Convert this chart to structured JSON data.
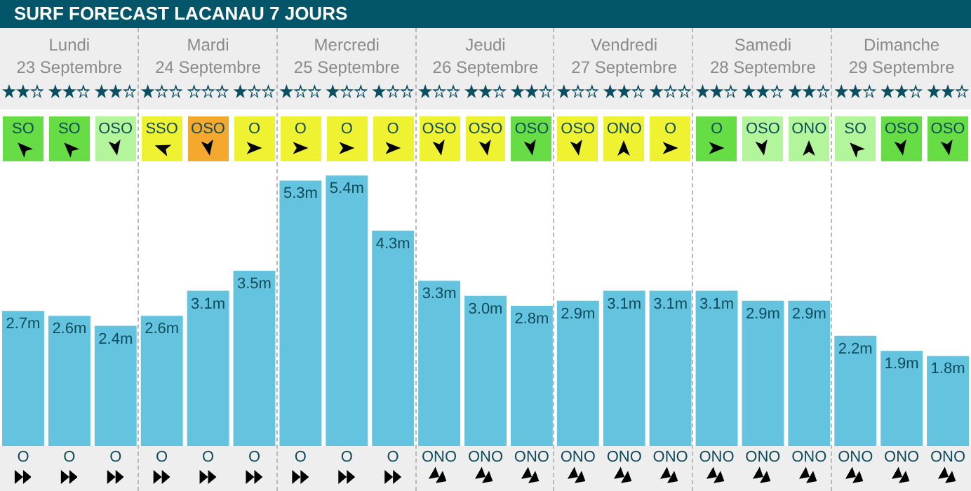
{
  "chart_data": {
    "type": "bar",
    "title": "SURF FORECAST LACANAU 7 JOURS",
    "categories": [
      "Lundi\n23 Septembre",
      "Mardi\n24 Septembre",
      "Mercredi\n25 Septembre",
      "Jeudi\n26 Septembre",
      "Vendredi\n27 Septembre",
      "Samedi\n28 Septembre",
      "Dimanche\n29 Septembre"
    ],
    "series": [
      {
        "color": "#64c4e0",
        "values": [
          2.7,
          2.6,
          5.3,
          3.3,
          2.9,
          3.1,
          2.2
        ],
        "value_labels": [
          "2.7m",
          "2.6m",
          "5.3m",
          "3.3m",
          "2.9m",
          "3.1m",
          "2.2m"
        ]
      },
      {
        "color": "#64c4e0",
        "values": [
          2.6,
          3.1,
          5.4,
          3.0,
          3.1,
          2.9,
          1.9
        ],
        "value_labels": [
          "2.6m",
          "3.1m",
          "5.4m",
          "3.0m",
          "3.1m",
          "2.9m",
          "1.9m"
        ]
      },
      {
        "color": "#64c4e0",
        "values": [
          2.4,
          3.5,
          4.3,
          2.8,
          3.1,
          2.9,
          1.8
        ],
        "value_labels": [
          "2.4m",
          "3.5m",
          "4.3m",
          "2.8m",
          "3.1m",
          "2.9m",
          "1.8m"
        ]
      }
    ],
    "annotations": [
      "SO",
      "SO",
      "OSO",
      "SSO",
      "OSO",
      "O",
      "O",
      "O",
      "O",
      "OSO",
      "OSO",
      "OSO",
      "OSO",
      "ONO",
      "O",
      "O",
      "OSO",
      "ONO",
      "SO",
      "OSO",
      "OSO",
      "O",
      "O",
      "O",
      "O",
      "O",
      "O",
      "O",
      "O",
      "O",
      "ONO",
      "ONO",
      "ONO",
      "ONO",
      "ONO",
      "ONO",
      "ONO",
      "ONO",
      "ONO",
      "ONO",
      "ONO",
      "ONO"
    ],
    "tick_labels": false
  }
}
